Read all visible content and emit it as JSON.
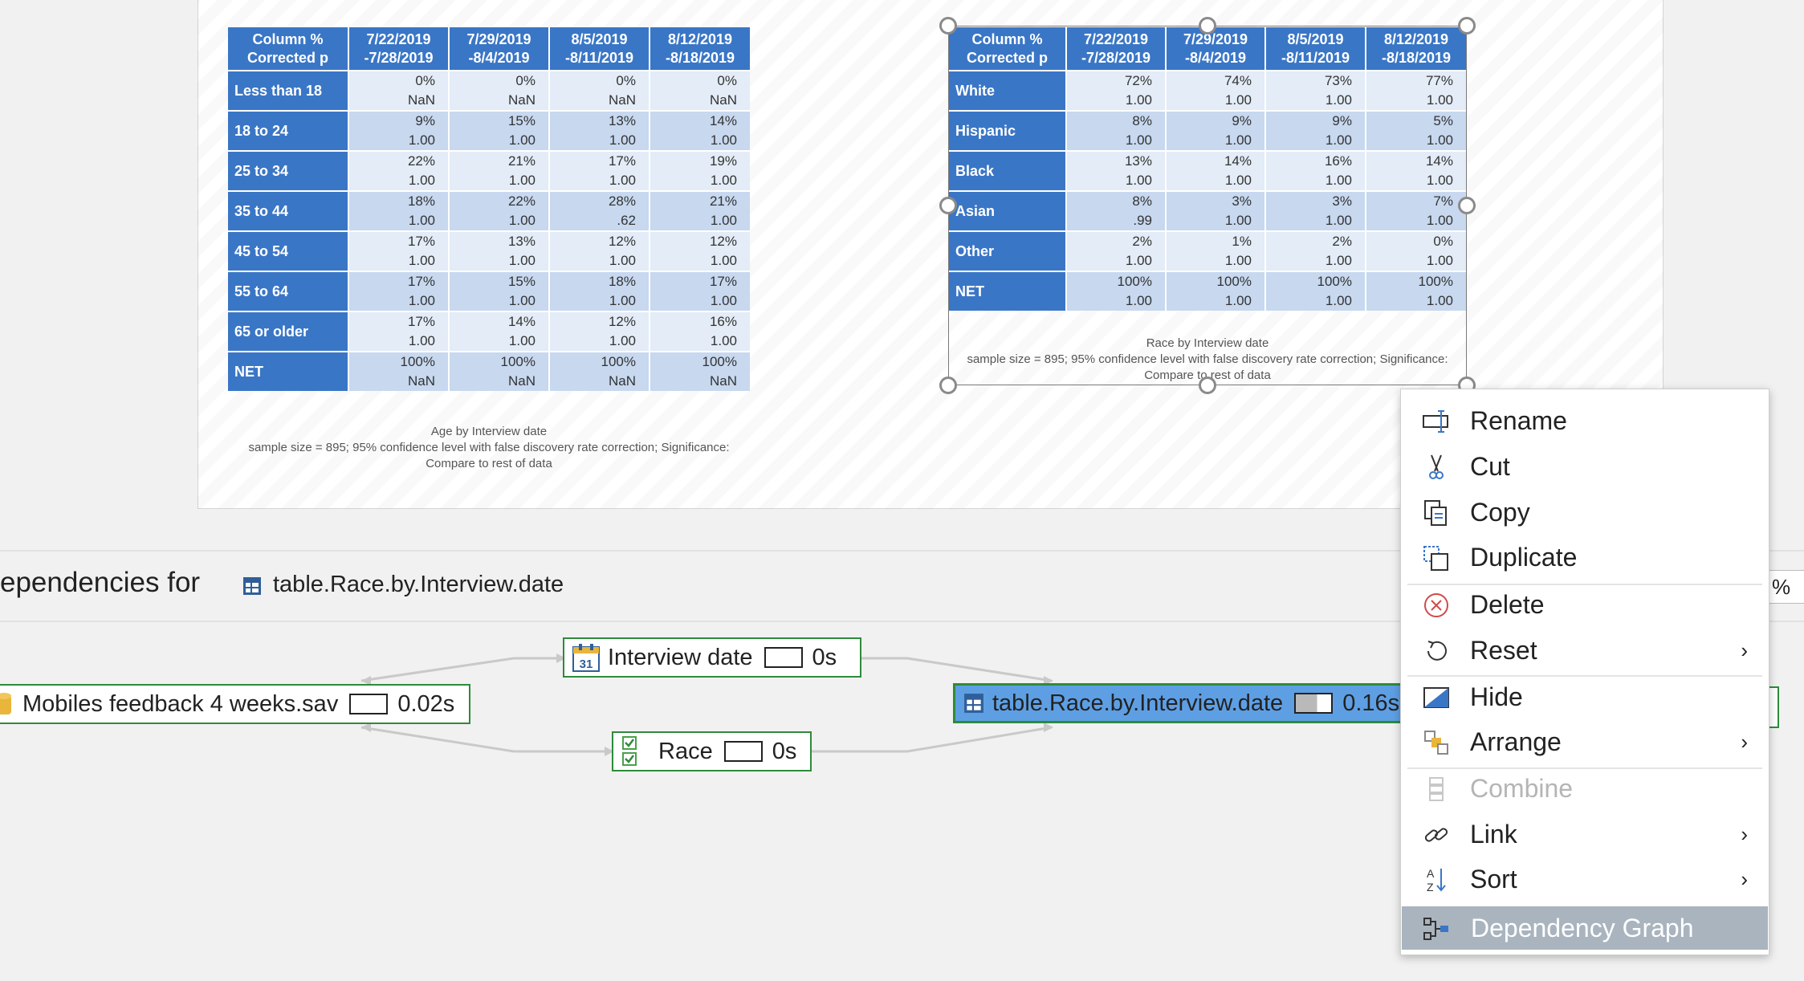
{
  "age_table": {
    "corner": [
      "Column %",
      "Corrected p"
    ],
    "columns": [
      [
        "7/22/2019",
        "-7/28/2019"
      ],
      [
        "7/29/2019",
        "-8/4/2019"
      ],
      [
        "8/5/2019",
        "-8/11/2019"
      ],
      [
        "8/12/2019",
        "-8/18/2019"
      ]
    ],
    "rows": [
      {
        "label": "Less than 18",
        "cells": [
          [
            "0%",
            "NaN"
          ],
          [
            "0%",
            "NaN"
          ],
          [
            "0%",
            "NaN"
          ],
          [
            "0%",
            "NaN"
          ]
        ]
      },
      {
        "label": "18 to 24",
        "cells": [
          [
            "9%",
            "1.00"
          ],
          [
            "15%",
            "1.00"
          ],
          [
            "13%",
            "1.00"
          ],
          [
            "14%",
            "1.00"
          ]
        ]
      },
      {
        "label": "25 to 34",
        "cells": [
          [
            "22%",
            "1.00"
          ],
          [
            "21%",
            "1.00"
          ],
          [
            "17%",
            "1.00"
          ],
          [
            "19%",
            "1.00"
          ]
        ]
      },
      {
        "label": "35 to 44",
        "cells": [
          [
            "18%",
            "1.00"
          ],
          [
            "22%",
            "1.00"
          ],
          [
            "28%",
            ".62"
          ],
          [
            "21%",
            "1.00"
          ]
        ]
      },
      {
        "label": "45 to 54",
        "cells": [
          [
            "17%",
            "1.00"
          ],
          [
            "13%",
            "1.00"
          ],
          [
            "12%",
            "1.00"
          ],
          [
            "12%",
            "1.00"
          ]
        ]
      },
      {
        "label": "55 to 64",
        "cells": [
          [
            "17%",
            "1.00"
          ],
          [
            "15%",
            "1.00"
          ],
          [
            "18%",
            "1.00"
          ],
          [
            "17%",
            "1.00"
          ]
        ]
      },
      {
        "label": "65 or older",
        "cells": [
          [
            "17%",
            "1.00"
          ],
          [
            "14%",
            "1.00"
          ],
          [
            "12%",
            "1.00"
          ],
          [
            "16%",
            "1.00"
          ]
        ]
      },
      {
        "label": "NET",
        "cells": [
          [
            "100%",
            "NaN"
          ],
          [
            "100%",
            "NaN"
          ],
          [
            "100%",
            "NaN"
          ],
          [
            "100%",
            "NaN"
          ]
        ]
      }
    ],
    "caption": [
      "Age by Interview date",
      "sample size = 895; 95% confidence level with false discovery rate correction; Significance:",
      "Compare to rest of data"
    ]
  },
  "race_table": {
    "corner": [
      "Column %",
      "Corrected p"
    ],
    "columns": [
      [
        "7/22/2019",
        "-7/28/2019"
      ],
      [
        "7/29/2019",
        "-8/4/2019"
      ],
      [
        "8/5/2019",
        "-8/11/2019"
      ],
      [
        "8/12/2019",
        "-8/18/2019"
      ]
    ],
    "rows": [
      {
        "label": "White",
        "cells": [
          [
            "72%",
            "1.00"
          ],
          [
            "74%",
            "1.00"
          ],
          [
            "73%",
            "1.00"
          ],
          [
            "77%",
            "1.00"
          ]
        ]
      },
      {
        "label": "Hispanic",
        "cells": [
          [
            "8%",
            "1.00"
          ],
          [
            "9%",
            "1.00"
          ],
          [
            "9%",
            "1.00"
          ],
          [
            "5%",
            "1.00"
          ]
        ]
      },
      {
        "label": "Black",
        "cells": [
          [
            "13%",
            "1.00"
          ],
          [
            "14%",
            "1.00"
          ],
          [
            "16%",
            "1.00"
          ],
          [
            "14%",
            "1.00"
          ]
        ]
      },
      {
        "label": "Asian",
        "cells": [
          [
            "8%",
            ".99"
          ],
          [
            "3%",
            "1.00"
          ],
          [
            "3%",
            "1.00"
          ],
          [
            "7%",
            "1.00"
          ]
        ]
      },
      {
        "label": "Other",
        "cells": [
          [
            "2%",
            "1.00"
          ],
          [
            "1%",
            "1.00"
          ],
          [
            "2%",
            "1.00"
          ],
          [
            "0%",
            "1.00"
          ]
        ]
      },
      {
        "label": "NET",
        "cells": [
          [
            "100%",
            "1.00"
          ],
          [
            "100%",
            "1.00"
          ],
          [
            "100%",
            "1.00"
          ],
          [
            "100%",
            "1.00"
          ]
        ]
      }
    ],
    "caption": [
      "Race by Interview date",
      "sample size = 895; 95% confidence level with false discovery rate correction; Significance:",
      "Compare to rest of data"
    ]
  },
  "dependencies": {
    "title": "ependencies for",
    "target": "table.Race.by.Interview.date",
    "percent_peek": "%",
    "nodes": {
      "source": {
        "label": "Mobiles feedback 4 weeks.sav",
        "time": "0.02s"
      },
      "interview_date": {
        "label": "Interview date",
        "time": "0s"
      },
      "race": {
        "label": "Race",
        "time": "0s"
      },
      "table": {
        "label": "table.Race.by.Interview.date",
        "time": "0.16s"
      }
    }
  },
  "context_menu": {
    "items": [
      {
        "label": "Rename",
        "icon": "rename-icon"
      },
      {
        "label": "Cut",
        "icon": "scissors-icon"
      },
      {
        "label": "Copy",
        "icon": "copy-icon"
      },
      {
        "label": "Duplicate",
        "icon": "duplicate-icon"
      },
      {
        "label": "Delete",
        "icon": "delete-icon"
      },
      {
        "label": "Reset",
        "icon": "reset-icon",
        "submenu": true
      },
      {
        "label": "Hide",
        "icon": "hide-icon"
      },
      {
        "label": "Arrange",
        "icon": "arrange-icon",
        "submenu": true
      },
      {
        "label": "Combine",
        "icon": "combine-icon",
        "disabled": true
      },
      {
        "label": "Link",
        "icon": "link-icon",
        "submenu": true
      },
      {
        "label": "Sort",
        "icon": "sort-icon",
        "submenu": true
      },
      {
        "label": "Dependency Graph",
        "icon": "dependency-graph-icon",
        "highlighted": true
      }
    ],
    "submenu_arrow": "›",
    "sort_icon_letters": [
      "A",
      "Z"
    ]
  }
}
